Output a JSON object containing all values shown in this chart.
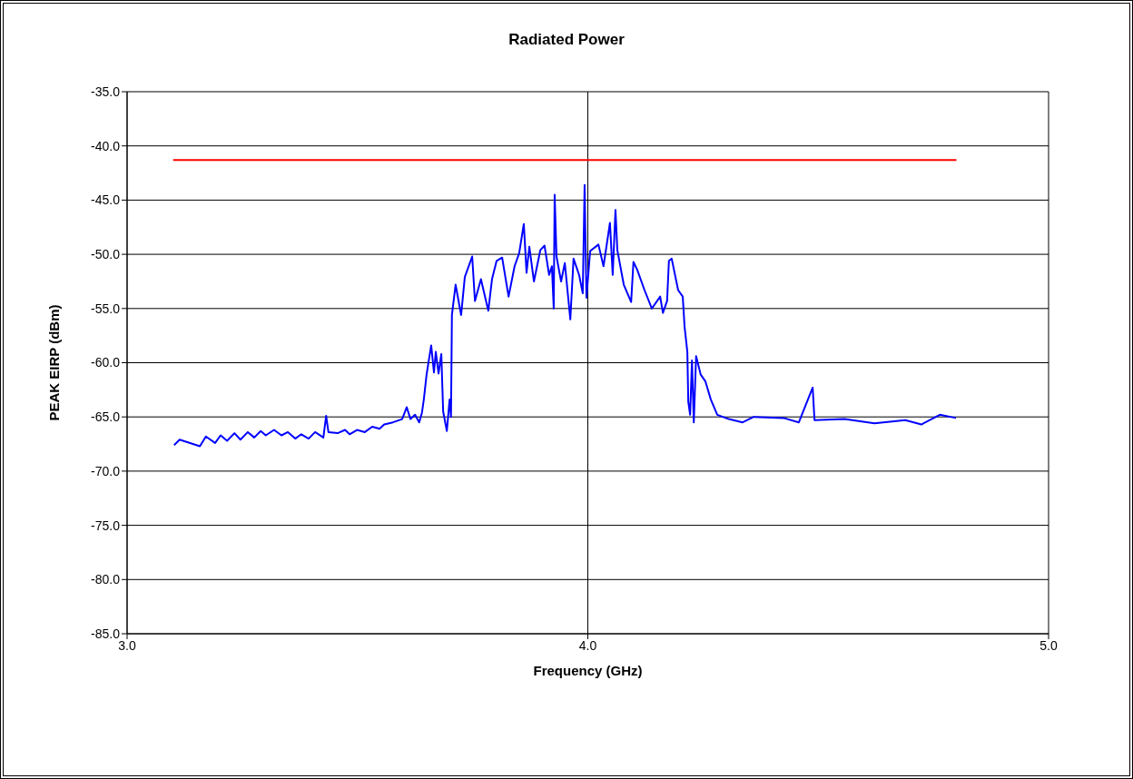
{
  "chart_data": {
    "type": "line",
    "title": "Radiated Power",
    "xlabel": "Frequency (GHz)",
    "ylabel": "PEAK EIRP (dBm)",
    "xlim": [
      3,
      5
    ],
    "xticks": [
      {
        "value": 3,
        "label": "3.0"
      },
      {
        "value": 4,
        "label": "4.0"
      },
      {
        "value": 5,
        "label": "5.0"
      }
    ],
    "ylim": [
      -85,
      -35
    ],
    "yticks": [
      {
        "value": -85,
        "label": "-85.0"
      },
      {
        "value": -80,
        "label": "-80.0"
      },
      {
        "value": -75,
        "label": "-75.0"
      },
      {
        "value": -70,
        "label": "-70.0"
      },
      {
        "value": -65,
        "label": "-65.0"
      },
      {
        "value": -60,
        "label": "-60.0"
      },
      {
        "value": -55,
        "label": "-55.0"
      },
      {
        "value": -50,
        "label": "-50.0"
      },
      {
        "value": -45,
        "label": "-45.0"
      },
      {
        "value": -40,
        "label": "-40.0"
      },
      {
        "value": -35,
        "label": "-35.0"
      }
    ],
    "grid": true,
    "marker": "none",
    "line_style": "solid",
    "series": [
      {
        "color": "#ff0000",
        "x": [
          3.1,
          4.8
        ],
        "values": [
          -41.3,
          -41.3
        ]
      },
      {
        "color": "#0000ff",
        "x": [
          3.102,
          3.114,
          3.158,
          3.171,
          3.191,
          3.203,
          3.217,
          3.233,
          3.246,
          3.262,
          3.276,
          3.29,
          3.301,
          3.319,
          3.335,
          3.349,
          3.365,
          3.378,
          3.394,
          3.408,
          3.426,
          3.432,
          3.437,
          3.457,
          3.473,
          3.483,
          3.499,
          3.516,
          3.532,
          3.548,
          3.558,
          3.577,
          3.597,
          3.607,
          3.615,
          3.625,
          3.634,
          3.64,
          3.644,
          3.65,
          3.66,
          3.666,
          3.67,
          3.676,
          3.682,
          3.686,
          3.694,
          3.7,
          3.703,
          3.705,
          3.713,
          3.725,
          3.733,
          3.749,
          3.755,
          3.768,
          3.784,
          3.792,
          3.802,
          3.814,
          3.828,
          3.841,
          3.851,
          3.861,
          3.867,
          3.873,
          3.883,
          3.897,
          3.906,
          3.916,
          3.922,
          3.926,
          3.928,
          3.932,
          3.942,
          3.95,
          3.962,
          3.969,
          3.981,
          3.989,
          3.993,
          3.997,
          4.005,
          4.023,
          4.034,
          4.048,
          4.054,
          4.06,
          4.064,
          4.078,
          4.094,
          4.099,
          4.107,
          4.123,
          4.139,
          4.157,
          4.163,
          4.172,
          4.176,
          4.182,
          4.196,
          4.206,
          4.21,
          4.216,
          4.218,
          4.222,
          4.226,
          4.23,
          4.235,
          4.245,
          4.255,
          4.267,
          4.281,
          4.306,
          4.336,
          4.36,
          4.425,
          4.458,
          4.488,
          4.492,
          4.557,
          4.622,
          4.689,
          4.724,
          4.764,
          4.799
        ],
        "values": [
          -67.6,
          -67.1,
          -67.7,
          -66.8,
          -67.4,
          -66.7,
          -67.2,
          -66.5,
          -67.1,
          -66.4,
          -66.9,
          -66.3,
          -66.7,
          -66.2,
          -66.7,
          -66.4,
          -67.0,
          -66.6,
          -67.0,
          -66.4,
          -66.9,
          -64.9,
          -66.4,
          -66.5,
          -66.2,
          -66.6,
          -66.2,
          -66.4,
          -65.9,
          -66.1,
          -65.7,
          -65.5,
          -65.2,
          -64.1,
          -65.2,
          -64.8,
          -65.5,
          -64.6,
          -63.4,
          -61.1,
          -58.4,
          -60.9,
          -59.0,
          -61.0,
          -59.2,
          -64.5,
          -66.3,
          -63.4,
          -65.0,
          -55.6,
          -52.8,
          -55.6,
          -52.1,
          -50.2,
          -54.3,
          -52.3,
          -55.2,
          -52.3,
          -50.6,
          -50.3,
          -53.9,
          -51.1,
          -49.9,
          -47.2,
          -51.7,
          -49.3,
          -52.5,
          -49.6,
          -49.2,
          -51.9,
          -51.1,
          -55.0,
          -44.5,
          -50.2,
          -52.5,
          -50.8,
          -56.0,
          -50.4,
          -51.9,
          -53.6,
          -43.6,
          -54.0,
          -49.7,
          -49.1,
          -51.1,
          -47.1,
          -51.9,
          -45.9,
          -49.6,
          -52.8,
          -54.4,
          -50.7,
          -51.4,
          -53.3,
          -55.0,
          -53.9,
          -55.4,
          -54.3,
          -50.6,
          -50.4,
          -53.3,
          -53.9,
          -56.7,
          -59.0,
          -63.6,
          -64.8,
          -59.8,
          -65.5,
          -59.4,
          -61.1,
          -61.7,
          -63.4,
          -64.8,
          -65.2,
          -65.5,
          -65.0,
          -65.1,
          -65.5,
          -62.3,
          -65.3,
          -65.2,
          -65.6,
          -65.3,
          -65.7,
          -64.8,
          -65.1
        ]
      }
    ]
  }
}
